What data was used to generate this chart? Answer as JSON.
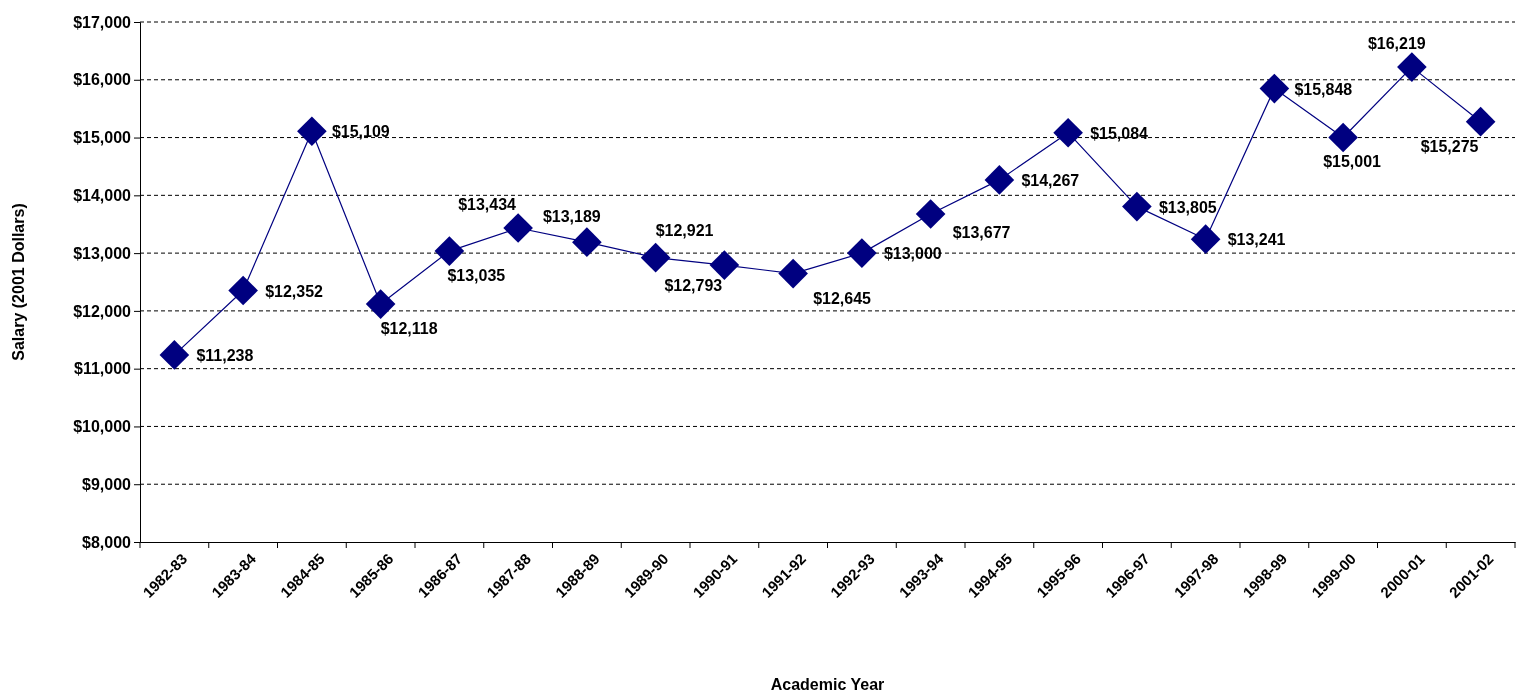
{
  "chart_data": {
    "type": "line",
    "xlabel": "Academic Year",
    "ylabel": "Salary (2001 Dollars)",
    "categories": [
      "1982-83",
      "1983-84",
      "1984-85",
      "1985-86",
      "1986-87",
      "1987-88",
      "1988-89",
      "1989-90",
      "1990-91",
      "1991-92",
      "1992-93",
      "1993-94",
      "1994-95",
      "1995-96",
      "1996-97",
      "1997-98",
      "1998-99",
      "1999-00",
      "2000-01",
      "2001-02"
    ],
    "series": [
      {
        "color": "#000080",
        "values": [
          11238,
          12352,
          15109,
          12118,
          13035,
          13434,
          13189,
          12921,
          12793,
          12645,
          13000,
          13677,
          14267,
          15084,
          13805,
          13241,
          15848,
          15001,
          16219,
          15275
        ],
        "value_labels": [
          "$11,238",
          "$12,352",
          "$15,109",
          "$12,118",
          "$13,035",
          "$13,434",
          "$13,189",
          "$12,921",
          "$12,793",
          "$12,645",
          "$13,000",
          "$13,677",
          "$14,267",
          "$15,084",
          "$13,805",
          "$13,241",
          "$15,848",
          "$15,001",
          "$16,219",
          "$15,275"
        ]
      }
    ],
    "ylim": [
      8000,
      17000
    ],
    "yticks": [
      {
        "value": 8000,
        "label": "$8,000"
      },
      {
        "value": 9000,
        "label": "$9,000"
      },
      {
        "value": 10000,
        "label": "$10,000"
      },
      {
        "value": 11000,
        "label": "$11,000"
      },
      {
        "value": 12000,
        "label": "$12,000"
      },
      {
        "value": 13000,
        "label": "$13,000"
      },
      {
        "value": 14000,
        "label": "$14,000"
      },
      {
        "value": 15000,
        "label": "$15,000"
      },
      {
        "value": 16000,
        "label": "$16,000"
      },
      {
        "value": 17000,
        "label": "$17,000"
      }
    ],
    "grid": "y",
    "marker": "diamond",
    "line_style": "solid"
  }
}
